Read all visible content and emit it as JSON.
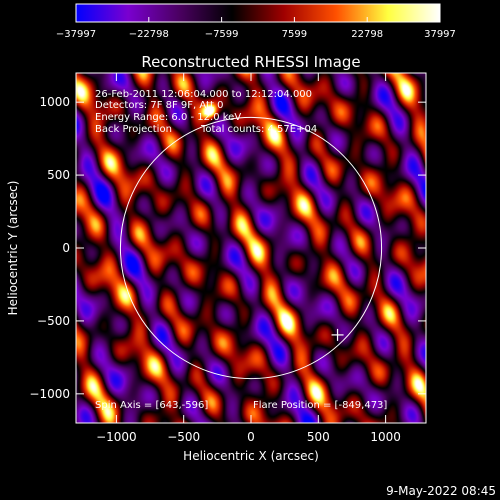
{
  "chart_data": {
    "type": "heatmap",
    "title": "Reconstructed RHESSI Image",
    "xlabel": "Heliocentric X (arcsec)",
    "ylabel": "Heliocentric Y (arcsec)",
    "xlim": [
      -1300,
      1300
    ],
    "ylim": [
      -1200,
      1200
    ],
    "x_ticks": [
      -1000,
      -500,
      0,
      500,
      1000
    ],
    "y_ticks": [
      -1000,
      -500,
      0,
      500,
      1000
    ],
    "x_tick_labels": [
      "−1000",
      "−500",
      "0",
      "500",
      "1000"
    ],
    "y_tick_labels": [
      "−1000",
      "−500",
      "0",
      "500",
      "1000"
    ],
    "colorbar": {
      "ticks": [
        -37997,
        -22798,
        -7599,
        7599,
        22798,
        37997
      ],
      "tick_labels": [
        "−37997",
        "−22798",
        "−7599",
        "7599",
        "22798",
        "37997"
      ],
      "colors": [
        "#0000ff",
        "#7a00d0",
        "#4a0060",
        "#000000",
        "#a00000",
        "#ff5000",
        "#ffff40",
        "#ffffff"
      ]
    },
    "annotations": [
      "26-Feb-2011 12:06:04.000 to 12:12:04.000",
      "Detectors: 7F 8F 9F, Att 0",
      "Energy Range: 6.0 - 12.0 keV",
      "Back Projection",
      "Total counts: 4.57E+04"
    ],
    "spin_axis_text": "Spin Axis = [643,-596]",
    "flare_position_text": "Flare Position = [-849,473]",
    "solar_disk_radius_arcsec": 970,
    "spin_axis_marker": [
      643,
      -596
    ]
  },
  "timestamp": "9-May-2022 08:45",
  "colors": {
    "background": "#000000",
    "foreground": "#ffffff"
  }
}
